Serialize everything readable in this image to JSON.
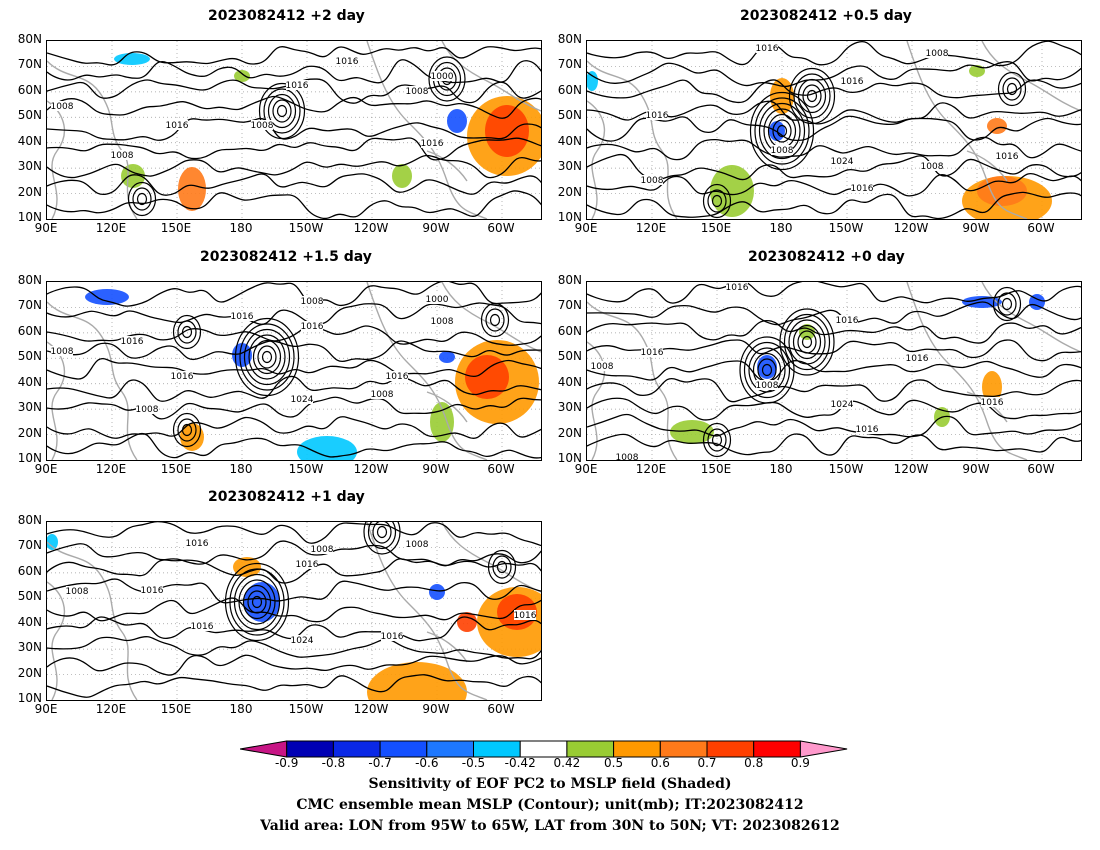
{
  "panels": [
    {
      "id": "p2",
      "title": "2023082412 +2 day"
    },
    {
      "id": "p05",
      "title": "2023082412 +0.5 day"
    },
    {
      "id": "p15",
      "title": "2023082412 +1.5 day"
    },
    {
      "id": "p0",
      "title": "2023082412 +0 day"
    },
    {
      "id": "p1",
      "title": "2023082412 +1 day"
    }
  ],
  "lat_ticks": [
    "80N",
    "70N",
    "60N",
    "50N",
    "40N",
    "30N",
    "20N",
    "10N"
  ],
  "lon_ticks": [
    "90E",
    "120E",
    "150E",
    "180",
    "150W",
    "120W",
    "90W",
    "60W"
  ],
  "contour_labels": [
    "1000",
    "1008",
    "1016",
    "1024"
  ],
  "colorbar": {
    "labels": [
      "-0.9",
      "-0.8",
      "-0.7",
      "-0.6",
      "-0.5",
      "-0.42",
      "0.42",
      "0.5",
      "0.6",
      "0.7",
      "0.8",
      "0.9"
    ],
    "colors": [
      "#c71585",
      "#0000b4",
      "#0a28e6",
      "#1450ff",
      "#1e78ff",
      "#00c8ff",
      "#ffffff",
      "#99cc33",
      "#ff9900",
      "#ff7a1a",
      "#ff4000",
      "#ff0000",
      "#ff99cc"
    ]
  },
  "caption": {
    "line1": "Sensitivity of EOF PC2 to MSLP field (Shaded)",
    "line2": "CMC ensemble mean MSLP (Contour); unit(mb); IT:2023082412",
    "line3": "Valid area: LON from 95W to 65W, LAT from 30N to 50N; VT: 2023082612"
  }
}
